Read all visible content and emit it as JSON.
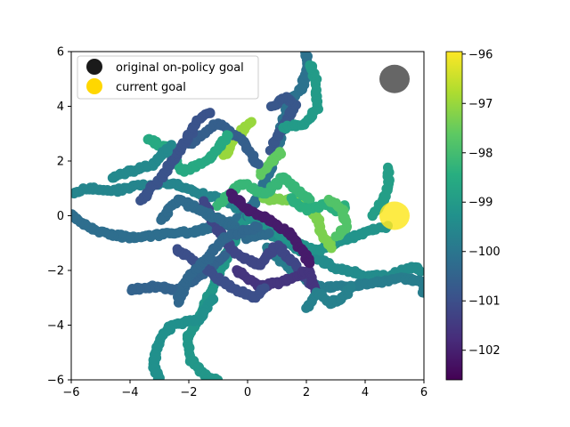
{
  "chart_data": {
    "type": "scatter",
    "title": "",
    "xlabel": "",
    "ylabel": "",
    "xlim": [
      -6,
      6
    ],
    "ylim": [
      -6,
      6
    ],
    "xticks": [
      -6,
      -4,
      -2,
      0,
      2,
      4,
      6
    ],
    "yticks": [
      -6,
      -4,
      -2,
      0,
      2,
      4,
      6
    ],
    "grid": false,
    "legend_position": "upper-left",
    "legend": [
      {
        "label": "original on-policy goal",
        "color": "#1a1a1a"
      },
      {
        "label": "current goal",
        "color": "#ffd700"
      }
    ],
    "goals": [
      {
        "name": "original on-policy goal",
        "x": 5.0,
        "y": 5.0,
        "color": "#555555"
      },
      {
        "name": "current goal",
        "x": 5.0,
        "y": 0.0,
        "color": "#fde725"
      }
    ],
    "colorbar": {
      "colormap": "viridis",
      "min": -102.6,
      "max": -95.95,
      "ticks": [
        -96,
        -97,
        -98,
        -99,
        -100,
        -101,
        -102
      ]
    },
    "paths": [
      {
        "value": -99.6,
        "points": [
          [
            0,
            0
          ],
          [
            -0.8,
            0.6
          ],
          [
            -1.6,
            0.8
          ],
          [
            -2.6,
            1.2
          ],
          [
            -3.6,
            1.1
          ],
          [
            -4.6,
            0.9
          ],
          [
            -5.5,
            1.0
          ],
          [
            -6,
            0.8
          ]
        ]
      },
      {
        "value": -100.2,
        "points": [
          [
            0,
            0
          ],
          [
            -1.0,
            -0.4
          ],
          [
            -2.0,
            -0.6
          ],
          [
            -3.0,
            -0.7
          ],
          [
            -4.0,
            -0.8
          ],
          [
            -5.0,
            -0.6
          ],
          [
            -5.8,
            -0.2
          ],
          [
            -6,
            0.1
          ]
        ]
      },
      {
        "value": -99.1,
        "points": [
          [
            0,
            0
          ],
          [
            -0.6,
            -1.2
          ],
          [
            -1.2,
            -2.6
          ],
          [
            -1.6,
            -3.6
          ],
          [
            -2.0,
            -4.4
          ],
          [
            -2.0,
            -5.2
          ],
          [
            -1.4,
            -5.9
          ],
          [
            -1.0,
            -6
          ]
        ]
      },
      {
        "value": -100.5,
        "points": [
          [
            -0.8,
            -1.5
          ],
          [
            -1.6,
            -2.2
          ],
          [
            -2.4,
            -2.7
          ],
          [
            -3.3,
            -2.6
          ],
          [
            -4.0,
            -2.7
          ]
        ]
      },
      {
        "value": -99.3,
        "points": [
          [
            -1.2,
            -3.0
          ],
          [
            -1.6,
            -3.8
          ],
          [
            -2.6,
            -4.0
          ],
          [
            -3.0,
            -4.6
          ],
          [
            -3.2,
            -5.4
          ],
          [
            -3.0,
            -6
          ]
        ]
      },
      {
        "value": -100.1,
        "points": [
          [
            0,
            0
          ],
          [
            0.6,
            1.2
          ],
          [
            1.0,
            2.4
          ],
          [
            1.2,
            3.4
          ],
          [
            1.4,
            4.2
          ],
          [
            1.8,
            4.6
          ],
          [
            2.0,
            5.2
          ],
          [
            2.0,
            6
          ]
        ]
      },
      {
        "value": -100.8,
        "points": [
          [
            0.8,
            2.4
          ],
          [
            1.2,
            3.2
          ],
          [
            1.6,
            4.0
          ],
          [
            1.3,
            4.3
          ],
          [
            0.8,
            4.0
          ]
        ]
      },
      {
        "value": -99.0,
        "points": [
          [
            1.2,
            3.2
          ],
          [
            2.0,
            3.4
          ],
          [
            2.4,
            4.0
          ],
          [
            2.3,
            5.0
          ],
          [
            2.1,
            5.6
          ]
        ]
      },
      {
        "value": -99.4,
        "points": [
          [
            0,
            0
          ],
          [
            1.0,
            -0.8
          ],
          [
            2.0,
            -1.4
          ],
          [
            3.0,
            -1.9
          ],
          [
            4.0,
            -2.2
          ],
          [
            4.8,
            -2.2
          ],
          [
            5.6,
            -1.9
          ],
          [
            6,
            -2.0
          ]
        ]
      },
      {
        "value": -99.8,
        "points": [
          [
            0.6,
            -1.2
          ],
          [
            1.6,
            -2.0
          ],
          [
            2.4,
            -2.6
          ],
          [
            3.2,
            -2.6
          ],
          [
            4.0,
            -2.5
          ],
          [
            4.6,
            -2.4
          ],
          [
            5.2,
            -2.3
          ],
          [
            6,
            -2.4
          ],
          [
            6,
            -2.9
          ]
        ]
      },
      {
        "value": -99.2,
        "points": [
          [
            0,
            0
          ],
          [
            1.4,
            -0.9
          ],
          [
            2.4,
            -1.3
          ],
          [
            3.2,
            -0.9
          ],
          [
            4.0,
            -0.6
          ],
          [
            4.8,
            -0.4
          ]
        ]
      },
      {
        "value": -97.3,
        "points": [
          [
            0.6,
            0.6
          ],
          [
            1.6,
            0.6
          ],
          [
            2.2,
            0.2
          ],
          [
            2.4,
            -0.2
          ],
          [
            2.6,
            -0.8
          ],
          [
            2.9,
            -1.2
          ]
        ]
      },
      {
        "value": -98.9,
        "points": [
          [
            4.2,
            0.0
          ],
          [
            4.6,
            0.5
          ],
          [
            4.8,
            1.2
          ],
          [
            4.8,
            1.8
          ]
        ]
      },
      {
        "value": -97.0,
        "points": [
          [
            -0.8,
            2.2
          ],
          [
            -0.5,
            2.7
          ],
          [
            -0.1,
            3.2
          ],
          [
            0.2,
            3.5
          ]
        ]
      },
      {
        "value": -97.6,
        "points": [
          [
            0.4,
            1.5
          ],
          [
            0.8,
            2.0
          ],
          [
            1.2,
            2.4
          ]
        ]
      },
      {
        "value": -98.2,
        "points": [
          [
            -1.0,
            0.4
          ],
          [
            -0.2,
            1.2
          ],
          [
            0.6,
            0.8
          ],
          [
            1.2,
            1.4
          ],
          [
            1.8,
            0.8
          ],
          [
            2.2,
            0.6
          ]
        ]
      },
      {
        "value": -100.6,
        "points": [
          [
            -2.0,
            2.6
          ],
          [
            -1.0,
            3.4
          ],
          [
            -0.2,
            2.8
          ],
          [
            0.4,
            1.8
          ]
        ]
      },
      {
        "value": -101.2,
        "points": [
          [
            -1.5,
            0.5
          ],
          [
            -1.0,
            -0.5
          ],
          [
            -0.4,
            -1.4
          ],
          [
            0.4,
            -1.8
          ],
          [
            1.0,
            -1.1
          ],
          [
            1.6,
            -1.8
          ],
          [
            2.2,
            -2.6
          ]
        ]
      },
      {
        "value": -101.6,
        "points": [
          [
            -0.4,
            -2.0
          ],
          [
            0.4,
            -2.6
          ],
          [
            1.2,
            -2.4
          ],
          [
            2.1,
            -2.0
          ],
          [
            2.3,
            -2.8
          ]
        ]
      },
      {
        "value": -98.6,
        "points": [
          [
            -3.4,
            2.8
          ],
          [
            -2.6,
            2.4
          ],
          [
            -2.2,
            1.6
          ],
          [
            -1.4,
            2.0
          ],
          [
            -0.6,
            3.0
          ]
        ]
      },
      {
        "value": -100.3,
        "points": [
          [
            -3.0,
            -0.2
          ],
          [
            -2.4,
            0.6
          ],
          [
            -1.6,
            0.2
          ],
          [
            -0.8,
            -0.2
          ],
          [
            0.0,
            -0.8
          ],
          [
            0.8,
            -0.6
          ]
        ]
      },
      {
        "value": -99.7,
        "points": [
          [
            2.0,
            -3.4
          ],
          [
            2.4,
            -2.8
          ],
          [
            2.8,
            -3.2
          ],
          [
            3.2,
            -3.0
          ],
          [
            3.6,
            -2.6
          ]
        ]
      },
      {
        "value": -98.4,
        "points": [
          [
            1.5,
            0.6
          ],
          [
            2.0,
            0.2
          ],
          [
            2.6,
            0.4
          ],
          [
            3.0,
            0.2
          ],
          [
            3.4,
            0.4
          ]
        ]
      },
      {
        "value": -97.8,
        "points": [
          [
            2.8,
            0.6
          ],
          [
            3.2,
            0.2
          ],
          [
            3.4,
            -0.4
          ],
          [
            3.0,
            -0.8
          ]
        ]
      },
      {
        "value": -101.0,
        "points": [
          [
            -2.4,
            -1.2
          ],
          [
            -1.6,
            -1.8
          ],
          [
            -0.6,
            -2.6
          ],
          [
            0.2,
            -3.0
          ],
          [
            0.6,
            -2.6
          ]
        ]
      },
      {
        "value": -100.9,
        "points": [
          [
            -3.6,
            0.6
          ],
          [
            -2.8,
            1.6
          ],
          [
            -2.2,
            2.6
          ],
          [
            -1.6,
            3.6
          ],
          [
            -1.2,
            3.8
          ]
        ]
      },
      {
        "value": -99.5,
        "points": [
          [
            -4.6,
            1.4
          ],
          [
            -4.0,
            1.6
          ],
          [
            -3.2,
            1.9
          ],
          [
            -2.6,
            2.6
          ]
        ]
      },
      {
        "value": -102.1,
        "points": [
          [
            -0.6,
            0.8
          ],
          [
            0.0,
            0.2
          ],
          [
            0.8,
            -0.2
          ],
          [
            1.4,
            -0.6
          ],
          [
            1.8,
            -1.2
          ],
          [
            2.2,
            -1.8
          ]
        ]
      },
      {
        "value": -100.4,
        "points": [
          [
            -2.4,
            -3.2
          ],
          [
            -2.0,
            -2.2
          ],
          [
            -1.4,
            -1.6
          ],
          [
            -0.8,
            -0.8
          ],
          [
            0.4,
            -0.4
          ]
        ]
      }
    ]
  }
}
